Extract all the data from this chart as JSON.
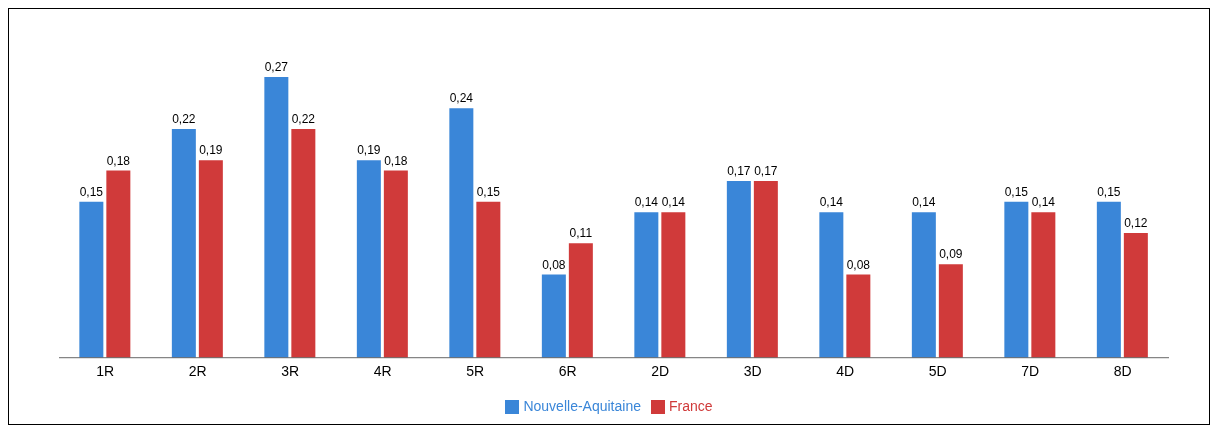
{
  "chart_data": {
    "type": "bar",
    "categories": [
      "1R",
      "2R",
      "3R",
      "4R",
      "5R",
      "6R",
      "2D",
      "3D",
      "4D",
      "5D",
      "7D",
      "8D"
    ],
    "series": [
      {
        "name": "Nouvelle-Aquitaine",
        "color": "#3a86d8",
        "values": [
          0.15,
          0.22,
          0.27,
          0.19,
          0.24,
          0.08,
          0.14,
          0.17,
          0.14,
          0.14,
          0.15,
          0.15
        ],
        "value_labels": [
          "0,15",
          "0,22",
          "0,27",
          "0,19",
          "0,24",
          "0,08",
          "0,14",
          "0,17",
          "0,14",
          "0,14",
          "0,15",
          "0,15"
        ]
      },
      {
        "name": "France",
        "color": "#d03a3a",
        "values": [
          0.18,
          0.19,
          0.22,
          0.18,
          0.15,
          0.11,
          0.14,
          0.17,
          0.08,
          0.09,
          0.14,
          0.12
        ],
        "value_labels": [
          "0,18",
          "0,19",
          "0,22",
          "0,18",
          "0,15",
          "0,11",
          "0,14",
          "0,17",
          "0,08",
          "0,09",
          "0,14",
          "0,12"
        ]
      }
    ],
    "legend": "bottom",
    "grid": false
  }
}
